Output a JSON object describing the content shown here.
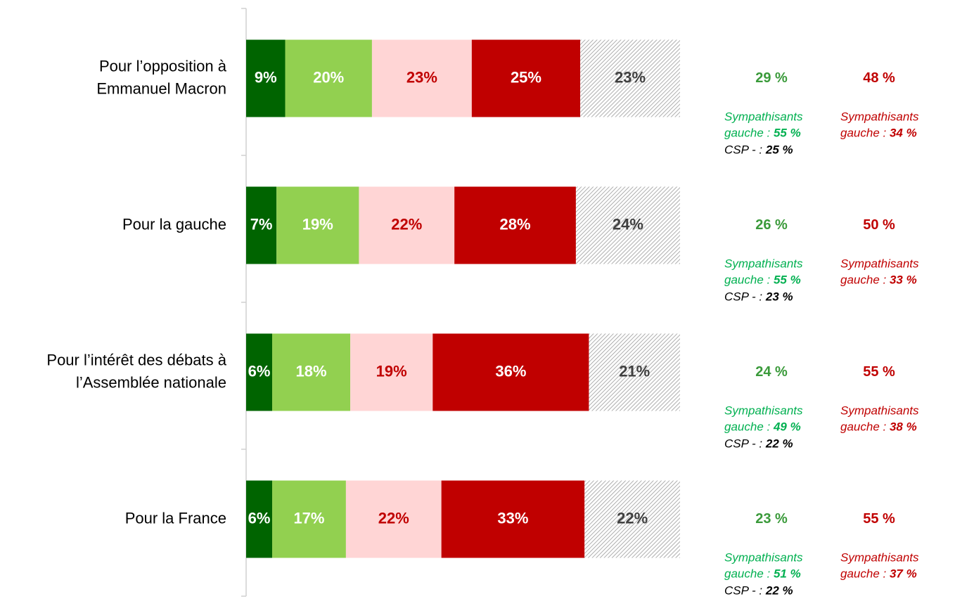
{
  "chart_data": {
    "type": "stacked-bar-horizontal",
    "categories": [
      [
        "Pour l’opposition à",
        "Emmanuel Macron"
      ],
      [
        "Pour la gauche"
      ],
      [
        "Pour l’intérêt des débats à",
        "l’Assemblée nationale"
      ],
      [
        "Pour la France"
      ]
    ],
    "series": [
      {
        "color": "#006400",
        "label_color": "#ffffff",
        "values": [
          9,
          7,
          6,
          6
        ],
        "value_labels": [
          "9%",
          "7%",
          "6%",
          "6%"
        ]
      },
      {
        "color": "#92d050",
        "label_color": "#ffffff",
        "values": [
          20,
          19,
          18,
          17
        ],
        "value_labels": [
          "20%",
          "19%",
          "18%",
          "17%"
        ]
      },
      {
        "color": "#ffd5d5",
        "label_color": "#c00000",
        "values": [
          23,
          22,
          19,
          22
        ],
        "value_labels": [
          "23%",
          "22%",
          "19%",
          "22%"
        ]
      },
      {
        "color": "#c00000",
        "label_color": "#ffffff",
        "values": [
          25,
          28,
          36,
          33
        ],
        "value_labels": [
          "25%",
          "28%",
          "36%",
          "33%"
        ]
      },
      {
        "color": "hatch",
        "label_color": "#404040",
        "values": [
          23,
          24,
          21,
          22
        ],
        "value_labels": [
          "23%",
          "24%",
          "21%",
          "22%"
        ]
      }
    ],
    "annotations": [
      {
        "positive": "29 %",
        "negative": "48 %",
        "positive_detail": {
          "lines": [
            "Sympathisants",
            "gauche : "
          ],
          "value": "55 %"
        },
        "negative_detail": {
          "lines": [
            "Sympathisants",
            "gauche : "
          ],
          "value": "34 %"
        },
        "csp": {
          "label": "CSP - : ",
          "value": "25 %"
        }
      },
      {
        "positive": "26 %",
        "negative": "50 %",
        "positive_detail": {
          "lines": [
            "Sympathisants",
            "gauche : "
          ],
          "value": "55 %"
        },
        "negative_detail": {
          "lines": [
            "Sympathisants",
            "gauche : "
          ],
          "value": "33 %"
        },
        "csp": {
          "label": "CSP - : ",
          "value": "23 %"
        }
      },
      {
        "positive": "24 %",
        "negative": "55 %",
        "positive_detail": {
          "lines": [
            "Sympathisants",
            "gauche : "
          ],
          "value": "49 %"
        },
        "negative_detail": {
          "lines": [
            "Sympathisants",
            "gauche : "
          ],
          "value": "38 %"
        },
        "csp": {
          "label": "CSP - : ",
          "value": "22 %"
        }
      },
      {
        "positive": "23 %",
        "negative": "55 %",
        "positive_detail": {
          "lines": [
            "Sympathisants",
            "gauche : "
          ],
          "value": "51 %"
        },
        "negative_detail": {
          "lines": [
            "Sympathisants",
            "gauche : "
          ],
          "value": "37 %"
        },
        "csp": {
          "label": "CSP - : ",
          "value": "22 %"
        }
      }
    ],
    "annotation_colors": {
      "positive": "#3a9a3a",
      "positive_detail": "#00b050",
      "negative": "#c00000",
      "csp": "#000000"
    }
  }
}
